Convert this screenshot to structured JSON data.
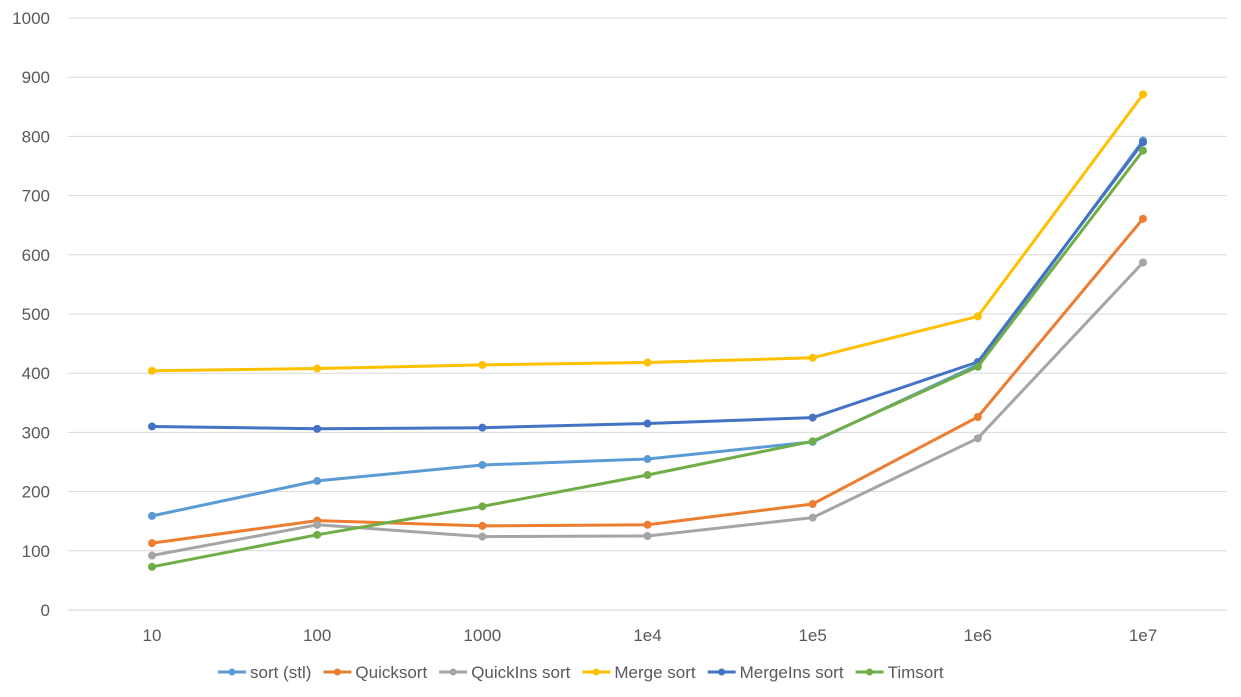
{
  "chart_data": {
    "type": "line",
    "title": "",
    "xlabel": "",
    "ylabel": "",
    "categories": [
      "10",
      "100",
      "1000",
      "1e4",
      "1e5",
      "1e6",
      "1e7"
    ],
    "ylim": [
      0,
      1000
    ],
    "yticks": [
      0,
      100,
      200,
      300,
      400,
      500,
      600,
      700,
      800,
      900,
      1000
    ],
    "ytick_labels": [
      "0",
      "100",
      "200",
      "300",
      "400",
      "500",
      "600",
      "700",
      "800",
      "900",
      "1000"
    ],
    "grid": true,
    "legend_position": "bottom",
    "series": [
      {
        "name": "sort (stl)",
        "color": "#5B9BD5",
        "values": [
          159,
          218,
          245,
          255,
          284,
          414,
          793
        ]
      },
      {
        "name": "Quicksort",
        "color": "#ED7D31",
        "values": [
          113,
          151,
          142,
          144,
          179,
          326,
          661
        ]
      },
      {
        "name": "QuickIns sort",
        "color": "#A5A5A5",
        "values": [
          92,
          144,
          124,
          125,
          156,
          290,
          587
        ]
      },
      {
        "name": "Merge sort",
        "color": "#FFC000",
        "values": [
          404,
          408,
          414,
          418,
          426,
          496,
          871
        ]
      },
      {
        "name": "MergeIns sort",
        "color": "#4472C4",
        "values": [
          310,
          306,
          308,
          315,
          325,
          419,
          790
        ]
      },
      {
        "name": "Timsort",
        "color": "#70AD47",
        "values": [
          73,
          127,
          175,
          228,
          285,
          411,
          776
        ]
      }
    ]
  }
}
